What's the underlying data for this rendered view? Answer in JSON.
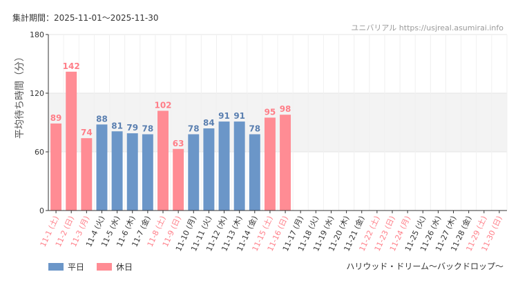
{
  "period_label": "集計期間：2025-11-01～2025-11-30",
  "credit": "ユニバリアル https://usjreal.asumirai.info",
  "footer_title": "ハリウッド・ドリーム～バックドロップ～",
  "colors": {
    "weekday": "#6b96c8",
    "holiday": "#ff8c94",
    "weekday_text": "#5a7fb0",
    "holiday_text": "#ff7e88",
    "band": "#f3f3f3",
    "grid": "#e6e6e6"
  },
  "chart_data": {
    "type": "bar",
    "ylabel": "平均待ち時間（分）",
    "ylim": [
      0,
      180
    ],
    "yticks": [
      0,
      60,
      120,
      180
    ],
    "band": [
      60,
      120
    ],
    "categories": [
      "11-1 (土)",
      "11-2 (日)",
      "11-3 (月)",
      "11-4 (火)",
      "11-5 (水)",
      "11-6 (木)",
      "11-7 (金)",
      "11-8 (土)",
      "11-9 (日)",
      "11-10 (月)",
      "11-11 (火)",
      "11-12 (水)",
      "11-13 (木)",
      "11-14 (金)",
      "11-15 (土)",
      "11-16 (日)",
      "11-17 (月)",
      "11-18 (火)",
      "11-19 (水)",
      "11-20 (木)",
      "11-21 (金)",
      "11-22 (土)",
      "11-23 (日)",
      "11-24 (月)",
      "11-25 (火)",
      "11-26 (水)",
      "11-27 (木)",
      "11-28 (金)",
      "11-29 (土)",
      "11-30 (日)"
    ],
    "values": [
      89,
      142,
      74,
      88,
      81,
      79,
      78,
      102,
      63,
      78,
      84,
      91,
      91,
      78,
      95,
      98,
      null,
      null,
      null,
      null,
      null,
      null,
      null,
      null,
      null,
      null,
      null,
      null,
      null,
      null
    ],
    "day_type": [
      "holiday",
      "holiday",
      "holiday",
      "weekday",
      "weekday",
      "weekday",
      "weekday",
      "holiday",
      "holiday",
      "weekday",
      "weekday",
      "weekday",
      "weekday",
      "weekday",
      "holiday",
      "holiday",
      "weekday",
      "weekday",
      "weekday",
      "weekday",
      "weekday",
      "holiday",
      "holiday",
      "holiday",
      "weekday",
      "weekday",
      "weekday",
      "weekday",
      "holiday",
      "holiday"
    ],
    "legend": [
      {
        "key": "weekday",
        "label": "平日"
      },
      {
        "key": "holiday",
        "label": "休日"
      }
    ],
    "legend_position": "bottom-left"
  }
}
